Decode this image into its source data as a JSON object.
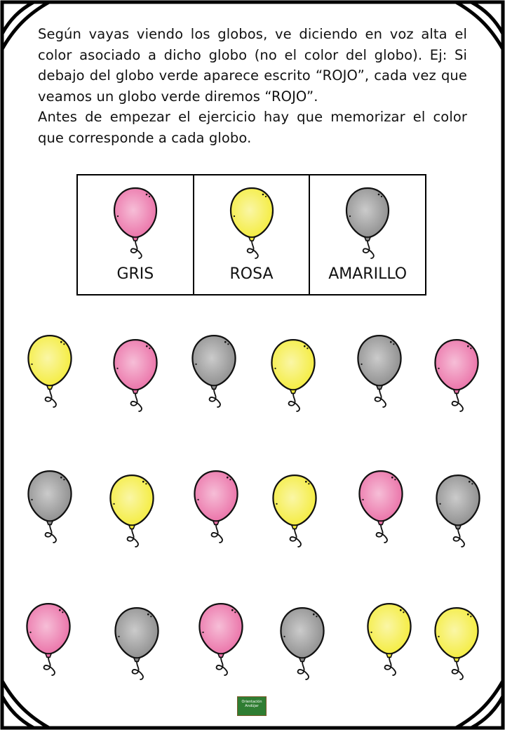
{
  "instructions": {
    "paragraph_1": "Según vayas viendo los globos, ve diciendo en voz alta el color asociado a dicho globo (no el color del globo). Ej: Si debajo del globo verde aparece escrito “ROJO”, cada vez que veamos un globo verde diremos “ROJO”.",
    "paragraph_2": "Antes de empezar el ejercicio hay que memorizar el color que corresponde a cada globo."
  },
  "colors": {
    "pink": "#ea6fa6",
    "yellow": "#f4ec3a",
    "gray": "#8c8c8c",
    "outline": "#111111"
  },
  "key": [
    {
      "balloon": "pink",
      "label": "GRIS"
    },
    {
      "balloon": "yellow",
      "label": "ROSA"
    },
    {
      "balloon": "gray",
      "label": "AMARILLO"
    }
  ],
  "rows": [
    [
      "yellow",
      "pink",
      "gray",
      "yellow",
      "gray",
      "pink"
    ],
    [
      "gray",
      "yellow",
      "pink",
      "yellow",
      "pink",
      "gray"
    ],
    [
      "pink",
      "gray",
      "pink",
      "gray",
      "yellow",
      "yellow"
    ]
  ],
  "logo": {
    "line_1": "Orientación",
    "line_2": "Andújar"
  }
}
